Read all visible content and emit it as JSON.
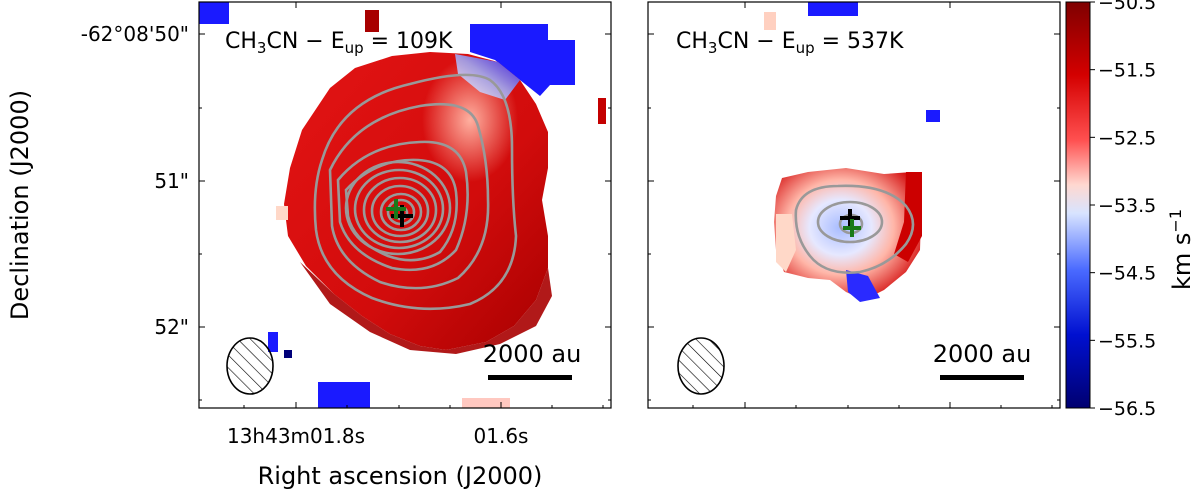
{
  "chart_data": {
    "type": "heatmap",
    "ylabel": "Declination (J2000)",
    "xlabel": "Right ascension (J2000)",
    "y_tick_labels": [
      "-62°08'50\"",
      "51\"",
      "52\""
    ],
    "x_tick_labels": [
      "13h43m01.8s",
      "01.6s"
    ],
    "scale_bar_label": "2000 au",
    "colorbar": {
      "label": "km s",
      "label_exponent": "−1",
      "vmin": -56.5,
      "vmax": -50.5,
      "cmap": "seismic_r",
      "tick_values": [
        -50.5,
        -51.5,
        -52.5,
        -53.5,
        -54.5,
        -55.5,
        -56.5
      ],
      "tick_labels": [
        "−50.5",
        "−51.5",
        "−52.5",
        "−53.5",
        "−54.5",
        "−55.5",
        "−56.5"
      ]
    },
    "panels": [
      {
        "molecule": "CH",
        "molecule_sub": "3",
        "molecule_tail": "CN − E",
        "energy_sub": "up",
        "energy_value": " = 109K"
      },
      {
        "molecule": "CH",
        "molecule_sub": "3",
        "molecule_tail": "CN − E",
        "energy_sub": "up",
        "energy_value": " = 537K"
      }
    ]
  },
  "colors": {
    "red": "#d40c0c",
    "dark_red": "#a80000",
    "blue": "#1a1aff",
    "contour": "#999999",
    "marker_black": "#000000",
    "marker_green": "#1a7a1a"
  }
}
